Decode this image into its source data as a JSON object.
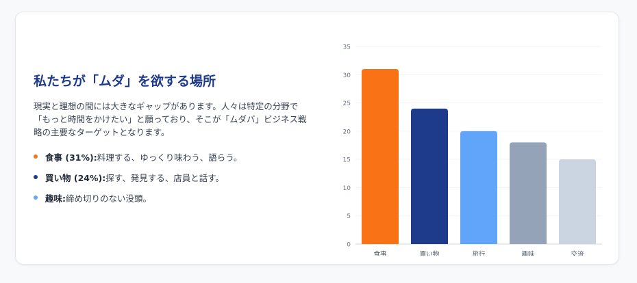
{
  "heading": "私たちが「ムダ」を欲する場所",
  "description": "現実と理想の間には大きなギャップがあります。人々は特定の分野で「もっと時間をかけたい」と願っており、そこが「ムダバ」ビジネス戦略の主要なターゲットとなります。",
  "items": [
    {
      "label": "食事 (31%):",
      "text": "料理する、ゆっくり味わう、語らう。",
      "color": "#f97316"
    },
    {
      "label": "買い物 (24%):",
      "text": "探す、発見する、店員と話す。",
      "color": "#1e3a8a"
    },
    {
      "label": "趣味:",
      "text": "締め切りのない没頭。",
      "color": "#60a5fa"
    }
  ],
  "chart_data": {
    "type": "bar",
    "categories": [
      "食事",
      "買い物",
      "旅行",
      "趣味",
      "交流"
    ],
    "values": [
      31,
      24,
      20,
      18,
      15
    ],
    "colors": [
      "#f97316",
      "#1e3a8a",
      "#60a5fa",
      "#94a3b8",
      "#cbd5e1"
    ],
    "ylim": [
      0,
      35
    ],
    "yticks": [
      0,
      5,
      10,
      15,
      20,
      25,
      30,
      35
    ],
    "grid": true,
    "title": "",
    "xlabel": "",
    "ylabel": ""
  }
}
